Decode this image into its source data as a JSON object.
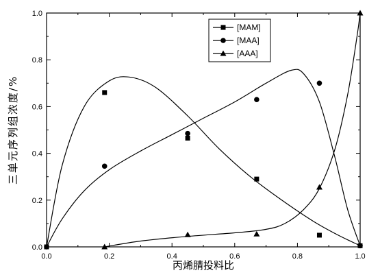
{
  "chart_data": {
    "type": "scatter",
    "xlabel": "丙烯腈投料比",
    "ylabel": "三单元序列组浓度/%",
    "xlim": [
      0.0,
      1.0
    ],
    "ylim": [
      0.0,
      1.0
    ],
    "x_ticks": [
      "0.0",
      "0.2",
      "0.4",
      "0.6",
      "0.8",
      "1.0"
    ],
    "y_ticks": [
      "0.0",
      "0.2",
      "0.4",
      "0.6",
      "0.8",
      "1.0"
    ],
    "grid": false,
    "legend_position": "top-right",
    "series": [
      {
        "name": "[MAM]",
        "marker": "square",
        "points": [
          [
            0.0,
            0.0
          ],
          [
            0.185,
            0.66
          ],
          [
            0.45,
            0.465
          ],
          [
            0.67,
            0.29
          ],
          [
            0.87,
            0.05
          ],
          [
            1.0,
            0.005
          ]
        ],
        "fit": [
          [
            0.0,
            0.0
          ],
          [
            0.05,
            0.35
          ],
          [
            0.12,
            0.6
          ],
          [
            0.2,
            0.71
          ],
          [
            0.27,
            0.725
          ],
          [
            0.35,
            0.68
          ],
          [
            0.45,
            0.56
          ],
          [
            0.55,
            0.42
          ],
          [
            0.65,
            0.3
          ],
          [
            0.75,
            0.2
          ],
          [
            0.85,
            0.11
          ],
          [
            0.93,
            0.05
          ],
          [
            1.0,
            0.005
          ]
        ]
      },
      {
        "name": "[MAA]",
        "marker": "circle",
        "points": [
          [
            0.0,
            0.0
          ],
          [
            0.185,
            0.345
          ],
          [
            0.45,
            0.485
          ],
          [
            0.67,
            0.63
          ],
          [
            0.87,
            0.7
          ],
          [
            1.0,
            0.005
          ]
        ],
        "fit": [
          [
            0.0,
            0.0
          ],
          [
            0.05,
            0.12
          ],
          [
            0.12,
            0.24
          ],
          [
            0.2,
            0.33
          ],
          [
            0.3,
            0.41
          ],
          [
            0.4,
            0.48
          ],
          [
            0.5,
            0.55
          ],
          [
            0.6,
            0.62
          ],
          [
            0.7,
            0.7
          ],
          [
            0.78,
            0.755
          ],
          [
            0.82,
            0.74
          ],
          [
            0.87,
            0.62
          ],
          [
            0.92,
            0.38
          ],
          [
            0.96,
            0.16
          ],
          [
            1.0,
            0.005
          ]
        ]
      },
      {
        "name": "[AAA]",
        "marker": "triangle",
        "points": [
          [
            0.185,
            0.0
          ],
          [
            0.45,
            0.052
          ],
          [
            0.67,
            0.055
          ],
          [
            0.87,
            0.255
          ],
          [
            1.0,
            1.0
          ]
        ],
        "fit": [
          [
            0.185,
            0.0
          ],
          [
            0.3,
            0.025
          ],
          [
            0.45,
            0.045
          ],
          [
            0.6,
            0.06
          ],
          [
            0.7,
            0.075
          ],
          [
            0.76,
            0.1
          ],
          [
            0.82,
            0.16
          ],
          [
            0.87,
            0.25
          ],
          [
            0.92,
            0.42
          ],
          [
            0.96,
            0.65
          ],
          [
            0.99,
            0.9
          ],
          [
            1.0,
            1.0
          ]
        ]
      }
    ]
  }
}
